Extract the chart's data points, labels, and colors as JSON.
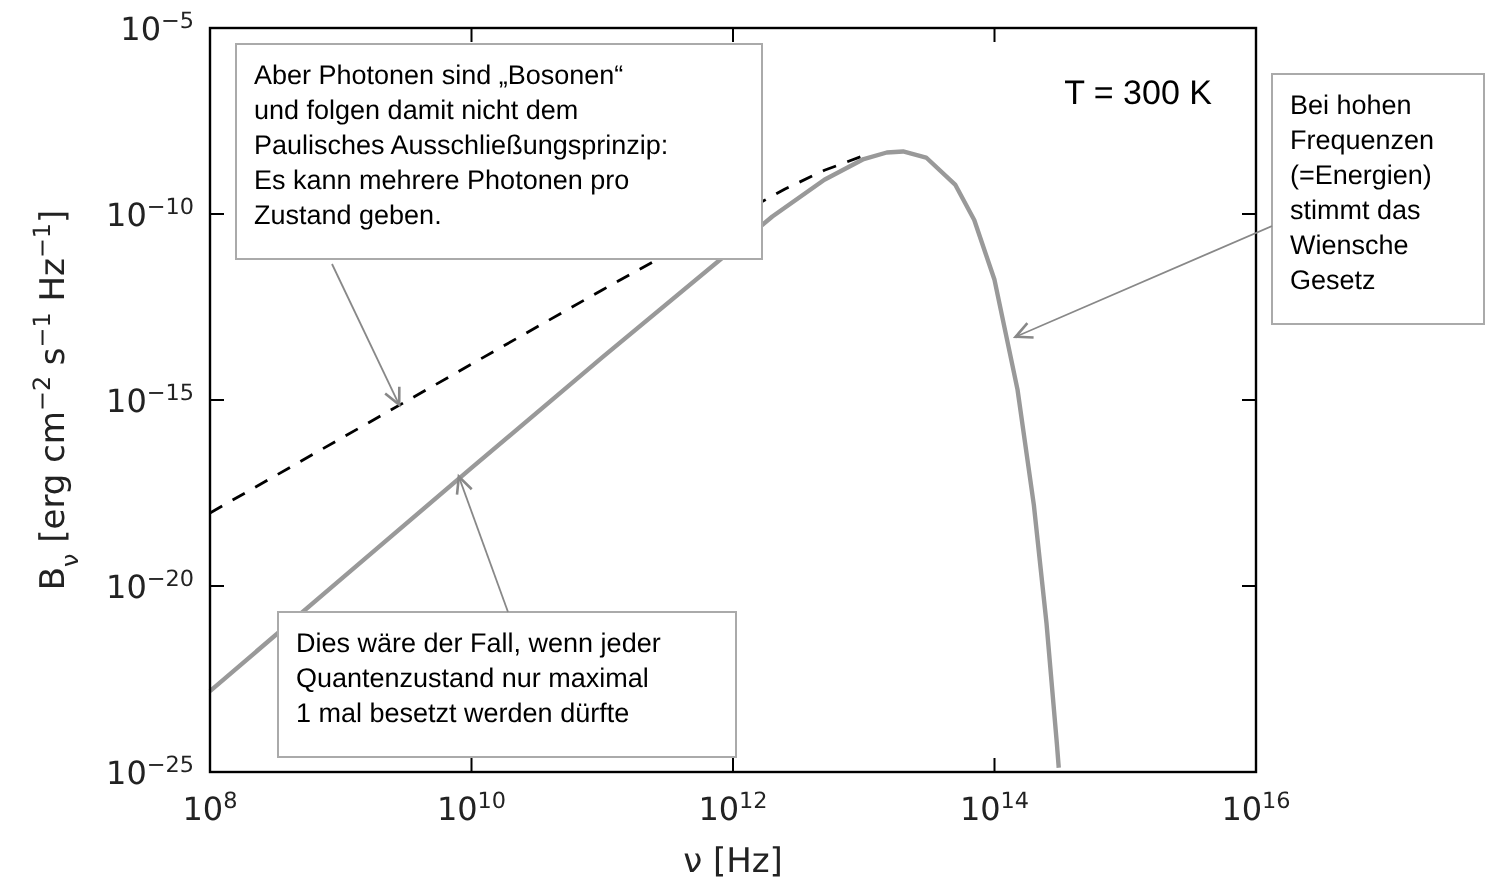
{
  "chart_data": {
    "type": "line",
    "xlabel": "ν [Hz]",
    "ylabel": "B$_{ν}$ [erg cm$^{−2}$ s$^{−1}$ Hz$^{−1}$]",
    "log": "xy",
    "grid": false,
    "xlim": [
      100000000.0,
      1e+16
    ],
    "ylim": [
      1e-25,
      1e-05
    ],
    "xticks": [
      {
        "value": 100000000.0,
        "label": "10$^{8}$"
      },
      {
        "value": 10000000000.0,
        "label": "10$^{10}$"
      },
      {
        "value": 1000000000000.0,
        "label": "10$^{12}$"
      },
      {
        "value": 100000000000000.0,
        "label": "10$^{14}$"
      },
      {
        "value": 1e+16,
        "label": "10$^{16}$"
      }
    ],
    "yticks": [
      {
        "value": 1e-25,
        "label": "10$^{−25}$"
      },
      {
        "value": 1e-20,
        "label": "10$^{−20}$"
      },
      {
        "value": 1e-15,
        "label": "10$^{−15}$"
      },
      {
        "value": 1e-10,
        "label": "10$^{−10}$"
      },
      {
        "value": 1e-05,
        "label": "10$^{−5}$"
      }
    ],
    "series": [
      {
        "color": "#000000",
        "line_style": "dashed",
        "x": [
          100000000.0,
          1000000000.0,
          10000000000.0,
          100000000000.0,
          2500000000000.0,
          5000000000000.0,
          10000000000000.0
        ],
        "values": [
          9.2e-19,
          9.2e-17,
          9.2e-15,
          9.1e-13,
          4.7e-10,
          1.5e-09,
          3.7e-09
        ]
      },
      {
        "color": "#999999",
        "line_style": "solid",
        "x": [
          100000000.0,
          1000000000.0,
          10000000000.0,
          100000000000.0,
          2000000000000.0,
          5000000000000.0,
          10000000000000.0,
          15000000000000.0,
          20000000000000.0,
          30000000000000.0,
          50000000000000.0,
          70000000000000.0,
          100000000000000.0,
          150000000000000.0,
          200000000000000.0,
          250000000000000.0,
          300000000000000.0,
          310000000000000.0
        ],
        "values": [
          1.5e-23,
          1.5e-20,
          1.5e-17,
          1.4e-14,
          8.6e-11,
          8.3e-10,
          3e-09,
          4.5e-09,
          4.8e-09,
          3.3e-09,
          6.2e-10,
          6.9e-11,
          1.7e-12,
          1.9e-15,
          1.5e-18,
          9.8e-22,
          5.7e-25,
          1.3e-25
        ]
      }
    ],
    "annotations": [
      "T = 300 K",
      {
        "text": "Aber Photonen sind „Bosonen“\nund folgen damit nicht dem\nPaulisches Ausschließungsprinzip:\nEs kann mehrere Photonen pro\nZustand geben.",
        "x": 2800000000.0,
        "y": 7.4e-16
      },
      {
        "text": "Dies wäre der Fall, wenn jeder\nQuantenzustand nur maximal\n1 mal besetzt werden dürfte",
        "x": 8000000000.0,
        "y": 8.7e-18
      },
      {
        "text": "Bei hohen\nFrequenzen\n(=Energien)\nstimmt das\nWiensche\nGesetz",
        "x": 145000000000000.0,
        "y": 5e-14
      }
    ]
  }
}
